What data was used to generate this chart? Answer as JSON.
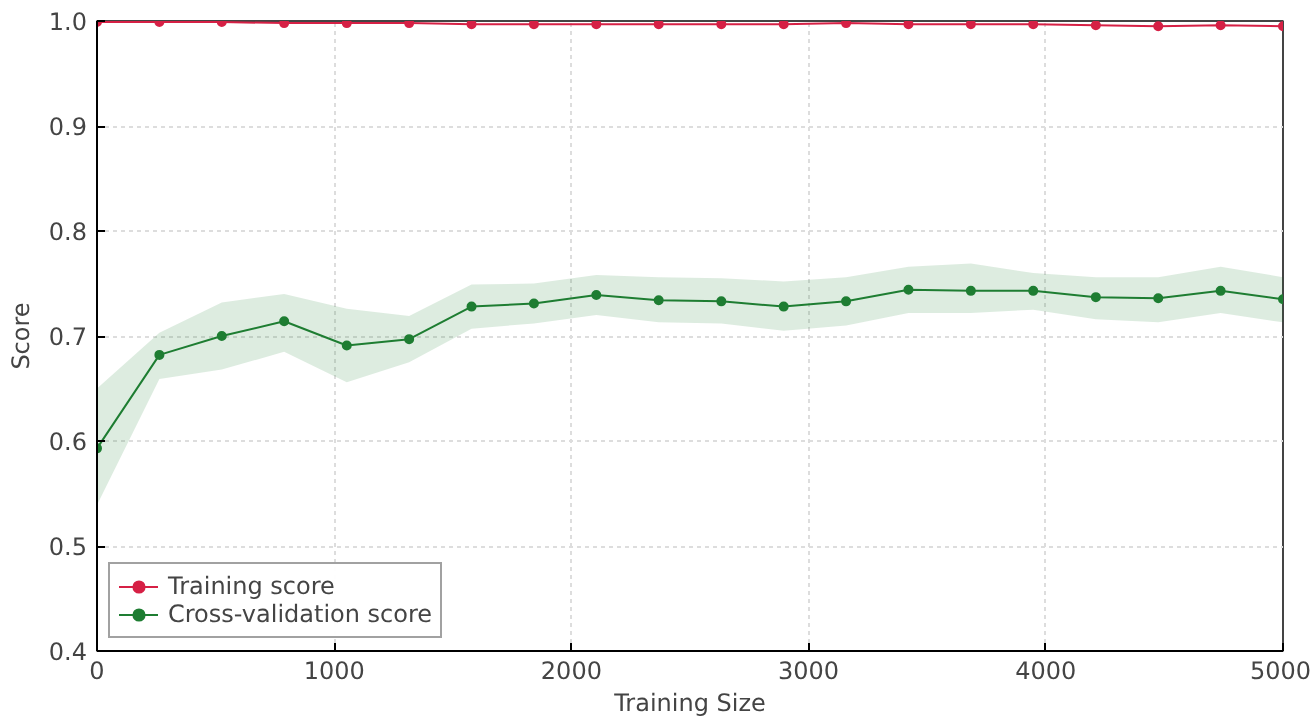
{
  "chart_data": {
    "type": "line",
    "xlabel": "Training Size",
    "ylabel": "Score",
    "xlim": [
      0,
      5000
    ],
    "xticks": [
      0,
      1000,
      2000,
      3000,
      4000,
      5000
    ],
    "ylim": [
      0.4,
      1.0
    ],
    "yticks": [
      0.4,
      0.5,
      0.6,
      0.7,
      0.8,
      0.9,
      {
        "value": 1.0,
        "label": "1.0"
      }
    ],
    "grid": true,
    "legend": "bottom left",
    "marker": "circle",
    "line_style": "solid",
    "series": [
      {
        "name": "Training score",
        "color": "#d62045",
        "x": [
          0,
          263,
          526,
          789,
          1053,
          1316,
          1579,
          1842,
          2105,
          2368,
          2632,
          2895,
          3158,
          3421,
          3684,
          3947,
          4211,
          4474,
          4737,
          5000
        ],
        "values": [
          0.999,
          0.999,
          0.999,
          0.998,
          0.998,
          0.998,
          0.997,
          0.997,
          0.997,
          0.997,
          0.997,
          0.997,
          0.998,
          0.997,
          0.997,
          0.997,
          0.996,
          0.995,
          0.996,
          0.995
        ]
      },
      {
        "name": "Cross-validation score",
        "color": "#1e7d32",
        "x": [
          0,
          263,
          526,
          789,
          1053,
          1316,
          1579,
          1842,
          2105,
          2368,
          2632,
          2895,
          3158,
          3421,
          3684,
          3947,
          4211,
          4474,
          4737,
          5000
        ],
        "values": [
          0.593,
          0.682,
          0.7,
          0.714,
          0.691,
          0.697,
          0.728,
          0.731,
          0.739,
          0.734,
          0.733,
          0.728,
          0.733,
          0.744,
          0.743,
          0.743,
          0.737,
          0.736,
          0.743,
          0.735
        ],
        "lower": [
          0.539,
          0.659,
          0.668,
          0.685,
          0.656,
          0.675,
          0.707,
          0.712,
          0.72,
          0.713,
          0.712,
          0.705,
          0.71,
          0.722,
          0.722,
          0.725,
          0.716,
          0.713,
          0.722,
          0.713
        ],
        "upper": [
          0.65,
          0.703,
          0.732,
          0.74,
          0.726,
          0.719,
          0.749,
          0.75,
          0.758,
          0.756,
          0.755,
          0.752,
          0.756,
          0.766,
          0.769,
          0.76,
          0.756,
          0.756,
          0.766,
          0.756
        ]
      }
    ]
  }
}
